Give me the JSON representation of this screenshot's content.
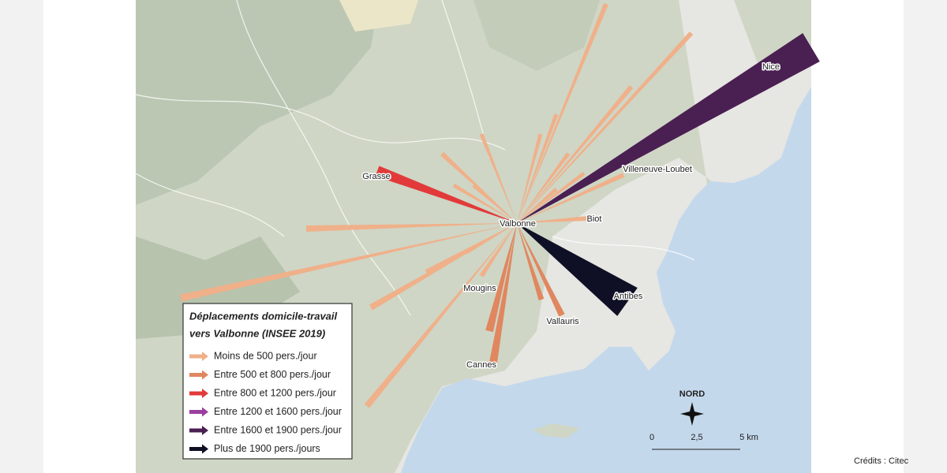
{
  "map": {
    "places": [
      "Valbonne",
      "Grasse",
      "Nice",
      "Villeneuve-Loubet",
      "Biot",
      "Mougins",
      "Antibes",
      "Vallauris",
      "Cannes"
    ],
    "legend": {
      "title": [
        "Déplacements domicile-travail",
        "vers Valbonne (INSEE 2019)"
      ],
      "items": [
        "Moins de 500 pers./jour",
        "Entre 500 et 800 pers./jour",
        "Entre 800 et 1200 pers./jour",
        "Entre 1200 et 1600 pers./jour",
        "Entre 1600 et 1900 pers./jour",
        "Plus de 1900 pers./jours"
      ]
    },
    "north": "NORD",
    "scale": [
      "0",
      "2,5",
      "5 km"
    ],
    "credits": "Crédits : Citec"
  }
}
